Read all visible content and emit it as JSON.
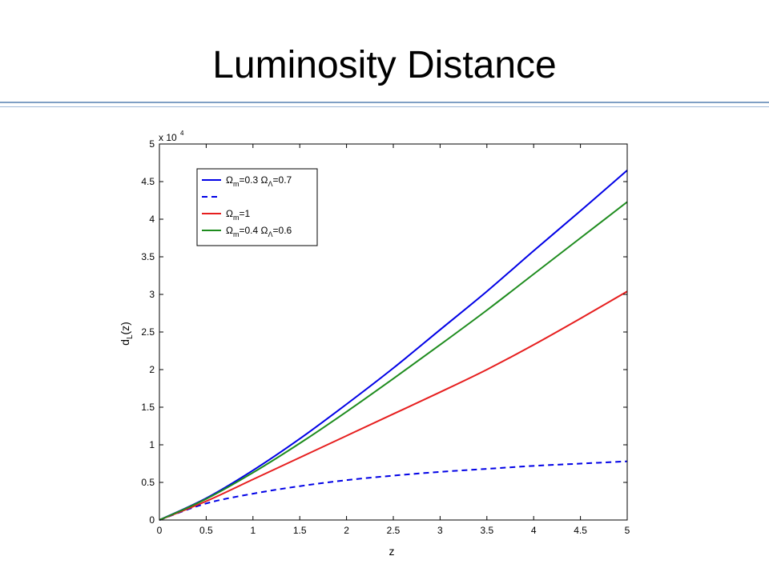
{
  "slide": {
    "title": "Luminosity Distance"
  },
  "chart_data": {
    "type": "line",
    "xlabel": "z",
    "ylabel": "d_L(z)",
    "y_multiplier": "x 10",
    "y_multiplier_exponent": "4",
    "xlim": [
      0,
      5
    ],
    "ylim": [
      0,
      50000
    ],
    "x_ticks": [
      0,
      0.5,
      1,
      1.5,
      2,
      2.5,
      3,
      3.5,
      4,
      4.5,
      5
    ],
    "x_tick_labels": [
      "0",
      "0.5",
      "1",
      "1.5",
      "2",
      "2.5",
      "3",
      "3.5",
      "4",
      "4.5",
      "5"
    ],
    "y_ticks": [
      0,
      5000,
      10000,
      15000,
      20000,
      25000,
      30000,
      35000,
      40000,
      45000,
      50000
    ],
    "y_tick_labels": [
      "0",
      "0.5",
      "1",
      "1.5",
      "2",
      "2.5",
      "3",
      "3.5",
      "4",
      "4.5",
      "5"
    ],
    "grid": false,
    "legend_position": "top-left",
    "series": [
      {
        "legend": {
          "omega": "Ω",
          "sub1": "m",
          "val1": "=0.3 ",
          "sub2": "Λ",
          "val2": "=0.7"
        },
        "color": "#0000e6",
        "dash": "solid",
        "x": [
          0,
          0.5,
          1,
          1.5,
          2,
          2.5,
          3,
          3.5,
          4,
          4.5,
          5
        ],
        "y": [
          0,
          2900,
          6600,
          10800,
          15400,
          20200,
          25300,
          30400,
          35800,
          41100,
          46500
        ]
      },
      {
        "legend": null,
        "color": "#0000e6",
        "dash": "dashed",
        "x": [
          0,
          0.5,
          1,
          1.5,
          2,
          2.5,
          3,
          3.5,
          4,
          4.5,
          5
        ],
        "y": [
          0,
          2200,
          3500,
          4500,
          5300,
          5900,
          6400,
          6800,
          7200,
          7500,
          7800
        ]
      },
      {
        "legend": {
          "omega": "Ω",
          "sub1": "m",
          "val1": "=1",
          "sub2": "",
          "val2": ""
        },
        "color": "#e61e1e",
        "dash": "solid",
        "x": [
          0,
          0.5,
          1,
          1.5,
          2,
          2.5,
          3,
          3.5,
          4,
          4.5,
          5
        ],
        "y": [
          0,
          2500,
          5400,
          8300,
          11200,
          14100,
          17000,
          20000,
          23300,
          26800,
          30400
        ]
      },
      {
        "legend": {
          "omega": "Ω",
          "sub1": "m",
          "val1": "=0.4 ",
          "sub2": "Λ",
          "val2": "=0.6"
        },
        "color": "#1e8c1e",
        "dash": "solid",
        "x": [
          0,
          0.5,
          1,
          1.5,
          2,
          2.5,
          3,
          3.5,
          4,
          4.5,
          5
        ],
        "y": [
          0,
          2800,
          6300,
          10200,
          14400,
          18800,
          23300,
          27900,
          32700,
          37500,
          42300
        ]
      }
    ]
  }
}
